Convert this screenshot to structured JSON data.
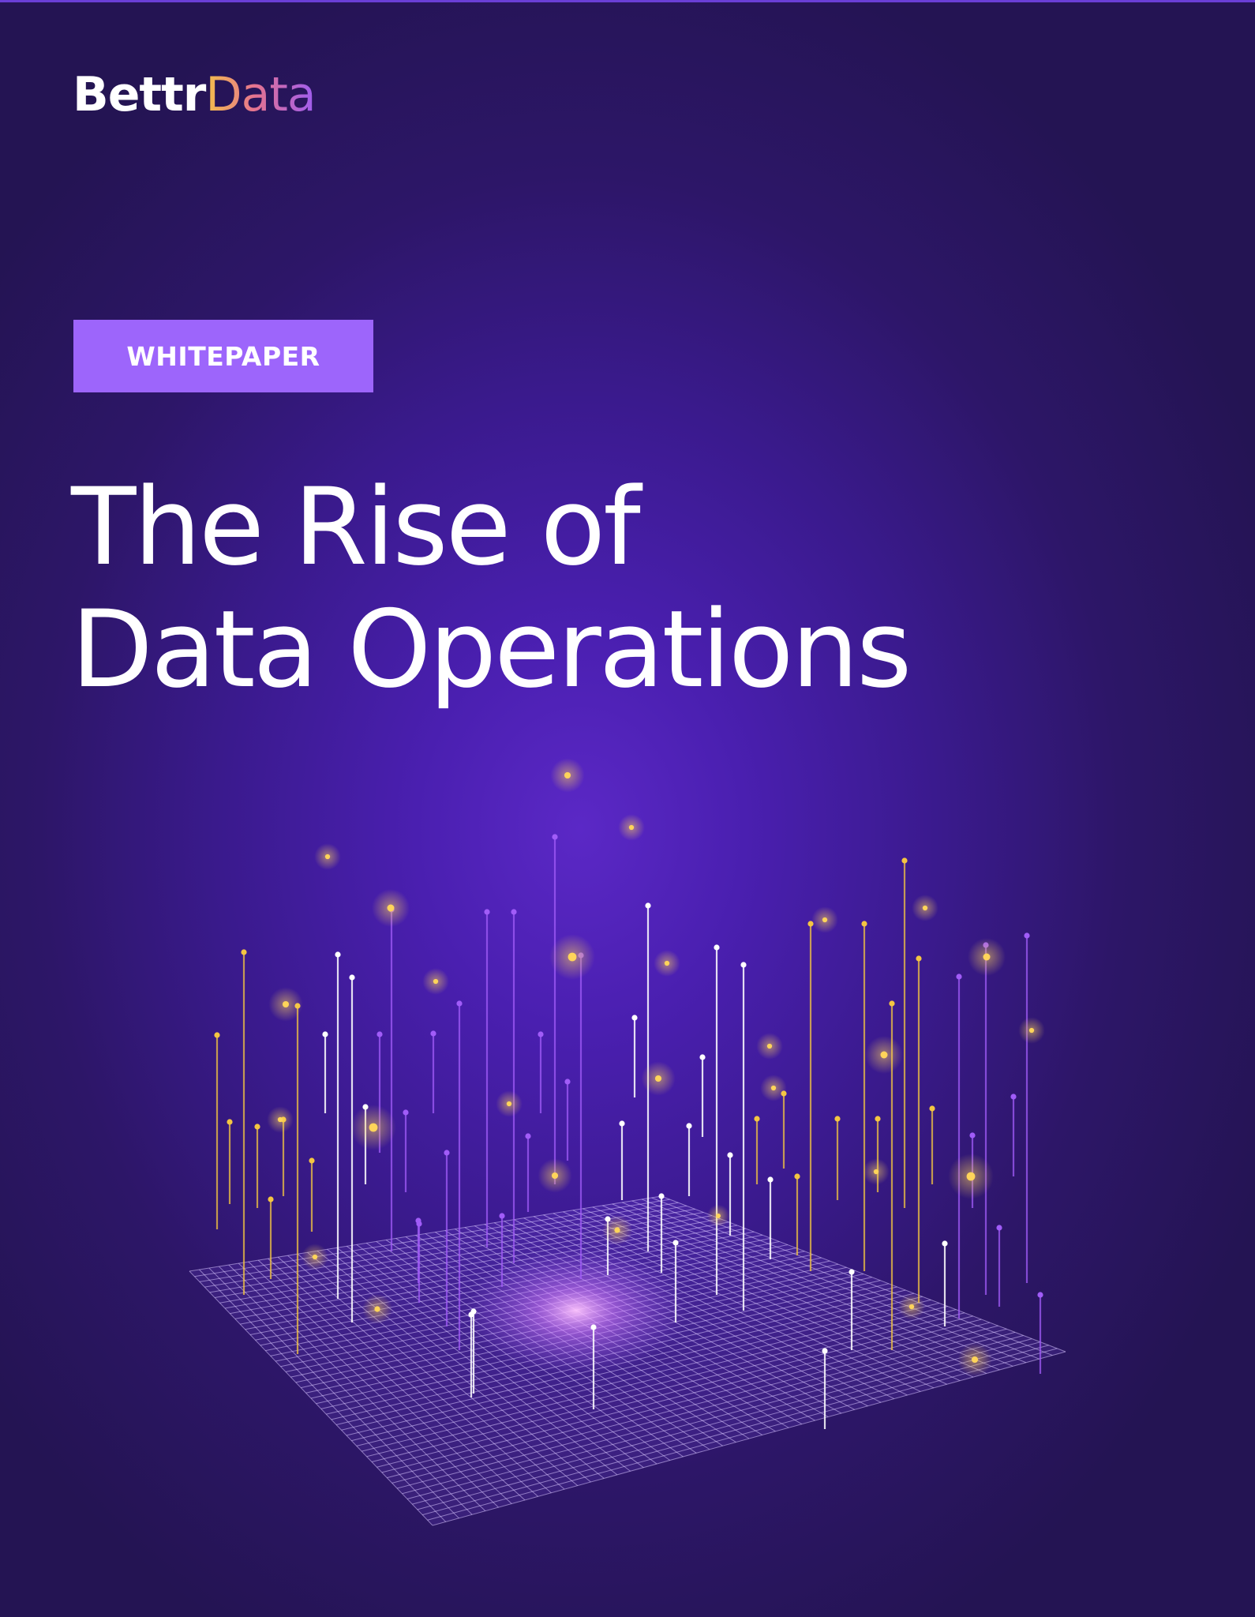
{
  "brand": {
    "logo_part1": "Bettr",
    "logo_part2": "Data",
    "gradient": [
      "#f4bf4a",
      "#e57390",
      "#9d5cf0"
    ]
  },
  "badge": {
    "label": "WHITEPAPER",
    "color": "#9d65fb"
  },
  "title": {
    "line1": "The Rise of",
    "line2": "Data Operations"
  },
  "colors": {
    "background": "#3a1a8d",
    "accent_yellow": "#f4c542",
    "accent_purple": "#a15cf8",
    "accent_white": "#ffffff"
  },
  "illustration": {
    "name": "data-grid-illustration"
  }
}
